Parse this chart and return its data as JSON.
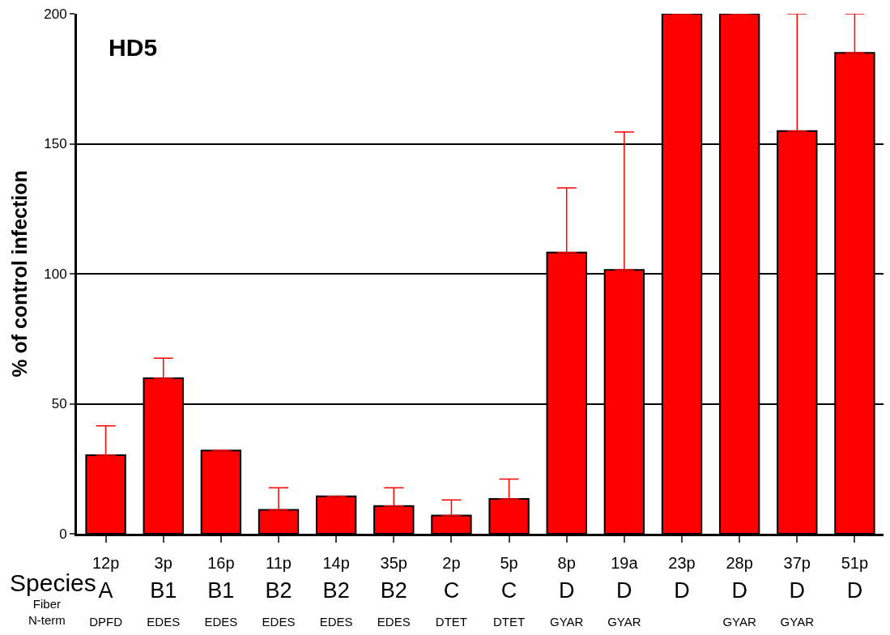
{
  "chart_data": {
    "type": "bar",
    "title": "HD5",
    "ylabel": "% of control infection",
    "categories": [
      "12p\nA\nDPFD",
      "3p\nB1\nEDES",
      "16p\nB1\nEDES",
      "11p\nB2\nEDES",
      "14p\nB2\nEDES",
      "35p\nB2\nEDES",
      "2p\nC\nDTET",
      "5p\nC\nDTET",
      "8p\nD\nGYAR",
      "19a\nD\nGYAR",
      "23p\nD",
      "28p\nD\nGYAR",
      "37p\nD\nGYAR",
      "51p\nD"
    ],
    "values": [
      30.2,
      59.8,
      32,
      9.2,
      14.4,
      10.7,
      7,
      13.4,
      108.2,
      101.5,
      200,
      200,
      154.9,
      185
    ],
    "errors": [
      [
        30.2,
        41.5
      ],
      [
        59.8,
        67.5
      ],
      null,
      [
        9.2,
        17.7
      ],
      null,
      [
        10.7,
        17.7
      ],
      [
        7,
        13
      ],
      [
        13.4,
        21
      ],
      [
        108.2,
        133
      ],
      [
        101.5,
        154.5
      ],
      null,
      null,
      [
        154.9,
        200
      ],
      [
        185,
        200
      ]
    ],
    "color": "#ff0000",
    "ylim": [
      0,
      200
    ],
    "yticks": [
      0,
      50,
      100,
      150,
      200
    ],
    "grid": "y",
    "annotations": [
      "Species",
      "Fiber\nN-term"
    ]
  }
}
